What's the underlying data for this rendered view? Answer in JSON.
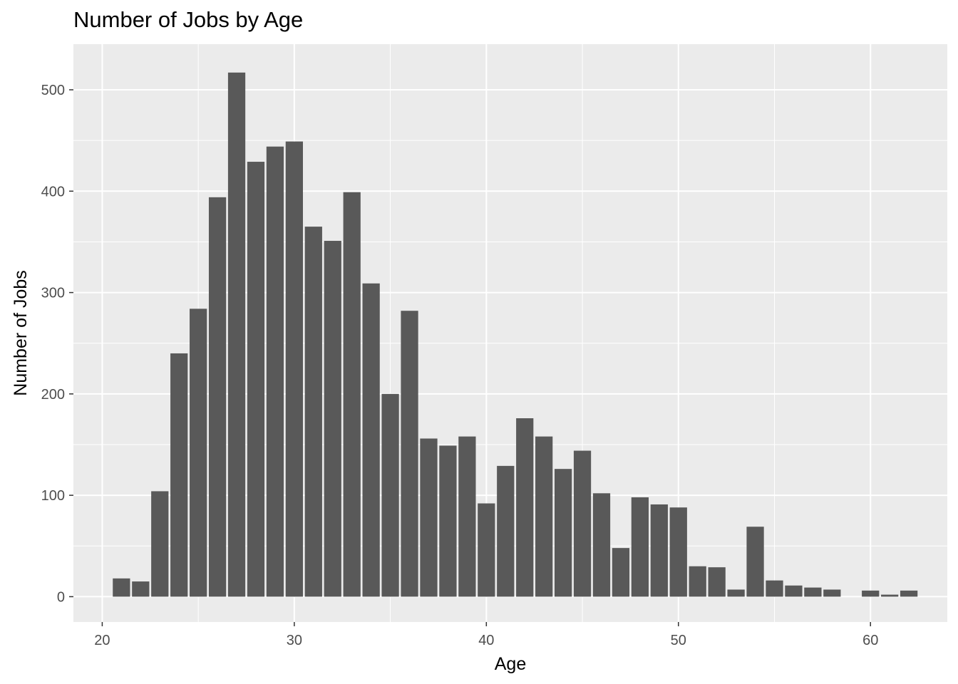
{
  "chart_data": {
    "type": "bar",
    "title": "Number of Jobs by Age",
    "xlabel": "Age",
    "ylabel": "Number of Jobs",
    "x": [
      21,
      22,
      23,
      24,
      25,
      26,
      27,
      28,
      29,
      30,
      31,
      32,
      33,
      34,
      35,
      36,
      37,
      38,
      39,
      40,
      41,
      42,
      43,
      44,
      45,
      46,
      47,
      48,
      49,
      50,
      51,
      52,
      53,
      54,
      55,
      56,
      57,
      58,
      60,
      61,
      62
    ],
    "values": [
      18,
      15,
      104,
      240,
      284,
      394,
      517,
      429,
      444,
      449,
      365,
      351,
      399,
      309,
      200,
      282,
      156,
      149,
      158,
      92,
      129,
      176,
      158,
      126,
      144,
      102,
      48,
      98,
      91,
      88,
      30,
      29,
      7,
      69,
      16,
      11,
      9,
      7,
      6,
      2,
      6
    ],
    "xlim": [
      18.5,
      64.0
    ],
    "ylim": [
      -25,
      545
    ],
    "x_ticks": [
      20,
      30,
      40,
      50,
      60
    ],
    "y_ticks": [
      0,
      100,
      200,
      300,
      400,
      500
    ],
    "x_tick_labels": [
      "20",
      "30",
      "40",
      "50",
      "60"
    ],
    "y_tick_labels": [
      "0",
      "100",
      "200",
      "300",
      "400",
      "500"
    ],
    "grid": true,
    "colors": {
      "panel_background": "#ebebeb",
      "grid_major": "#ffffff",
      "bar_fill": "#595959",
      "tick_text": "#4d4d4d",
      "tick_mark": "#333333"
    }
  }
}
